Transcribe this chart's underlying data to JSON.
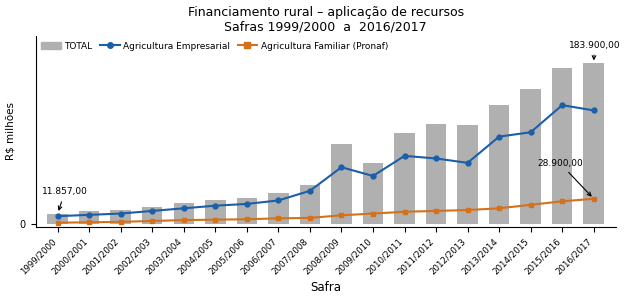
{
  "safras": [
    "1999/2000",
    "2000/2001",
    "2001/2002",
    "2002/2003",
    "2003/2004",
    "2004/2005",
    "2005/2006",
    "2006/2007",
    "2007/2008",
    "2008/2009",
    "2009/2010",
    "2010/2011",
    "2011/2012",
    "2012/2013",
    "2013/2014",
    "2014/2015",
    "2015/2016",
    "2016/2017"
  ],
  "total": [
    11857,
    14500,
    16000,
    20000,
    24000,
    28000,
    30000,
    36000,
    45000,
    92000,
    70000,
    104000,
    115000,
    113000,
    136000,
    155000,
    178000,
    183900
  ],
  "empresarial": [
    9000,
    10500,
    12000,
    15000,
    18000,
    21000,
    23000,
    27000,
    38000,
    65000,
    55000,
    78000,
    75000,
    70000,
    100000,
    105000,
    136000,
    130000
  ],
  "familiar": [
    1500,
    2000,
    2500,
    3500,
    4500,
    5000,
    5500,
    6500,
    7000,
    10000,
    12000,
    14000,
    15000,
    16000,
    18000,
    22000,
    26000,
    28900
  ],
  "annotation_total_val": "183.900,00",
  "annotation_familiar_val": "28.900,00",
  "annotation_first_val": "11.857,00",
  "title_line1": "Financiamento rural – aplicação de recursos",
  "title_line2": "Safras 1999/2000  a  2016/2017",
  "ylabel": "R$ milhões",
  "xlabel": "Safra",
  "bar_color": "#B0B0B0",
  "line_empresarial_color": "#1A5FA8",
  "line_familiar_color": "#D4711A",
  "legend_total": "TOTAL",
  "legend_empresarial": "Agricultura Empresarial",
  "legend_familiar": "Agricultura Familiar (Pronaf)"
}
